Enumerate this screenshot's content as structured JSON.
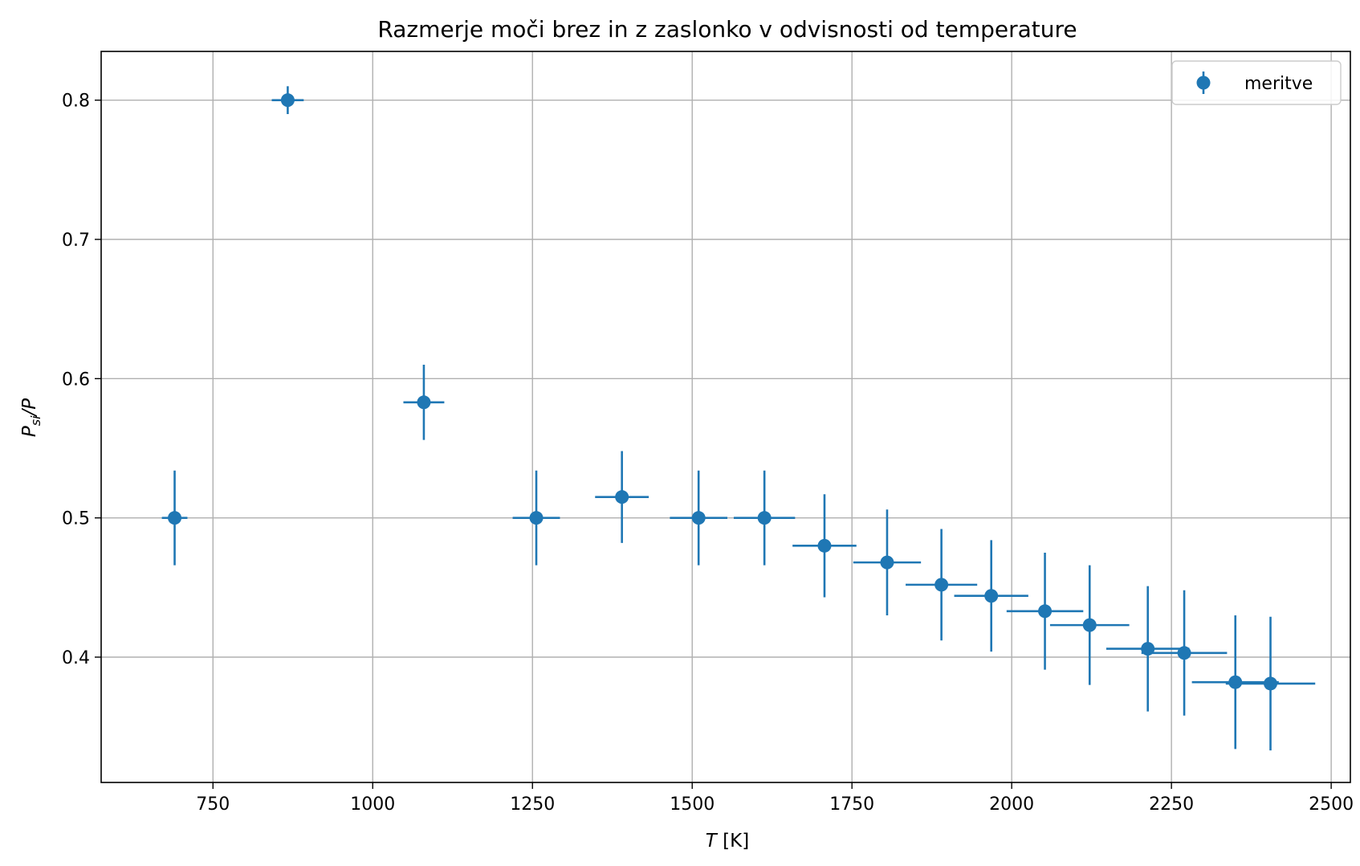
{
  "chart_data": {
    "type": "scatter",
    "title": "Razmerje moči brez in z zaslonko v odvisnosti od temperature",
    "xlabel_var": "T",
    "xlabel_unit": " [K]",
    "ylabel_main": "P",
    "ylabel_sub": "si",
    "ylabel_tail": "/P",
    "xlim": [
      575,
      2530
    ],
    "ylim": [
      0.31,
      0.835
    ],
    "xticks": [
      750,
      1000,
      1250,
      1500,
      1750,
      2000,
      2250,
      2500
    ],
    "yticks": [
      0.4,
      0.5,
      0.6,
      0.7,
      0.8
    ],
    "ytick_labels": [
      "0.4",
      "0.5",
      "0.6",
      "0.7",
      "0.8"
    ],
    "grid": true,
    "legend_position": "top-right",
    "series_color": "#1f77b4",
    "series": [
      {
        "name": "meritve",
        "points": [
          {
            "x": 690,
            "y": 0.5,
            "xerr": 20,
            "yerr": 0.034
          },
          {
            "x": 867,
            "y": 0.8,
            "xerr": 25,
            "yerr": 0.01
          },
          {
            "x": 1080,
            "y": 0.583,
            "xerr": 32,
            "yerr": 0.027
          },
          {
            "x": 1256,
            "y": 0.5,
            "xerr": 37,
            "yerr": 0.034
          },
          {
            "x": 1390,
            "y": 0.515,
            "xerr": 42,
            "yerr": 0.033
          },
          {
            "x": 1510,
            "y": 0.5,
            "xerr": 45,
            "yerr": 0.034
          },
          {
            "x": 1613,
            "y": 0.5,
            "xerr": 48,
            "yerr": 0.034
          },
          {
            "x": 1707,
            "y": 0.48,
            "xerr": 50,
            "yerr": 0.037
          },
          {
            "x": 1805,
            "y": 0.468,
            "xerr": 53,
            "yerr": 0.038
          },
          {
            "x": 1890,
            "y": 0.452,
            "xerr": 56,
            "yerr": 0.04
          },
          {
            "x": 1968,
            "y": 0.444,
            "xerr": 58,
            "yerr": 0.04
          },
          {
            "x": 2052,
            "y": 0.433,
            "xerr": 60,
            "yerr": 0.042
          },
          {
            "x": 2122,
            "y": 0.423,
            "xerr": 62,
            "yerr": 0.043
          },
          {
            "x": 2213,
            "y": 0.406,
            "xerr": 65,
            "yerr": 0.045
          },
          {
            "x": 2270,
            "y": 0.403,
            "xerr": 67,
            "yerr": 0.045
          },
          {
            "x": 2350,
            "y": 0.382,
            "xerr": 68,
            "yerr": 0.048
          },
          {
            "x": 2405,
            "y": 0.381,
            "xerr": 70,
            "yerr": 0.048
          }
        ]
      }
    ]
  }
}
